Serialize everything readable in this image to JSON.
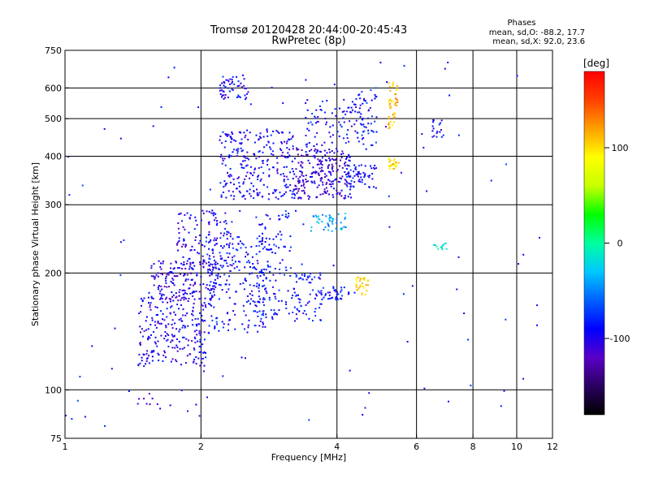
{
  "chart_data": {
    "type": "scatter",
    "title": "Tromsø 20120428 20:44:00-20:45:43",
    "subtitle": "RwPretec (8p)",
    "xlabel": "Frequency [MHz]",
    "ylabel": "Stationary phase Virtual Height [km]",
    "x_scale": "log",
    "y_scale": "log",
    "xlim": [
      1,
      12
    ],
    "ylim": [
      75,
      750
    ],
    "x_ticks": [
      1,
      2,
      4,
      6,
      8,
      10,
      12
    ],
    "x_tick_labels": [
      "1",
      "2",
      "4",
      "6",
      "8",
      "10",
      "12"
    ],
    "x_gridlines": [
      2,
      4,
      6,
      8,
      10
    ],
    "y_ticks": [
      75,
      100,
      200,
      300,
      400,
      500,
      600,
      750
    ],
    "y_tick_labels": [
      "75",
      "100",
      "200",
      "300",
      "400",
      "500",
      "600",
      "750"
    ],
    "y_gridlines": [
      100,
      200,
      300,
      400,
      500,
      600
    ],
    "grid": true,
    "phases": {
      "heading": "Phases",
      "line1": "mean, sd,O: -88.2, 17.7",
      "line2": "mean, sd,X:  92.0, 23.6"
    },
    "colorbar": {
      "label": "[deg]",
      "range": [
        -180,
        180
      ],
      "ticks": [
        100,
        0,
        -100
      ],
      "tick_labels": [
        "100",
        "0",
        "-100"
      ],
      "colormap": [
        "#000000",
        "#2a0060",
        "#5a00c8",
        "#0000ff",
        "#0060ff",
        "#00c8ff",
        "#00ffa0",
        "#00ff00",
        "#c8ff00",
        "#ffff00",
        "#ffa000",
        "#ff4000",
        "#ff0000"
      ]
    },
    "clusters": [
      {
        "fmin": 1.45,
        "fmax": 2.05,
        "hmin": 115,
        "hmax": 175,
        "phase": -100,
        "n": 240
      },
      {
        "fmin": 1.55,
        "fmax": 2.15,
        "hmin": 170,
        "hmax": 215,
        "phase": -105,
        "n": 160
      },
      {
        "fmin": 1.75,
        "fmax": 2.35,
        "hmin": 205,
        "hmax": 290,
        "phase": -100,
        "n": 130
      },
      {
        "fmin": 2.05,
        "fmax": 2.8,
        "hmin": 140,
        "hmax": 250,
        "phase": -90,
        "n": 230
      },
      {
        "fmin": 2.2,
        "fmax": 3.2,
        "hmin": 310,
        "hmax": 470,
        "phase": -95,
        "n": 260
      },
      {
        "fmin": 2.2,
        "fmax": 2.55,
        "hmin": 560,
        "hmax": 650,
        "phase": -95,
        "n": 55
      },
      {
        "fmin": 2.65,
        "fmax": 3.2,
        "hmin": 150,
        "hmax": 290,
        "phase": -85,
        "n": 120
      },
      {
        "fmin": 3.2,
        "fmax": 4.3,
        "hmin": 310,
        "hmax": 420,
        "phase": -110,
        "n": 240
      },
      {
        "fmin": 3.2,
        "fmax": 3.7,
        "hmin": 150,
        "hmax": 200,
        "phase": -90,
        "n": 70
      },
      {
        "fmin": 3.4,
        "fmax": 4.4,
        "hmin": 420,
        "hmax": 560,
        "phase": -90,
        "n": 80
      },
      {
        "fmin": 3.5,
        "fmax": 4.2,
        "hmin": 255,
        "hmax": 285,
        "phase": -40,
        "n": 45
      },
      {
        "fmin": 3.7,
        "fmax": 4.25,
        "hmin": 170,
        "hmax": 185,
        "phase": -85,
        "n": 35
      },
      {
        "fmin": 4.2,
        "fmax": 4.9,
        "hmin": 330,
        "hmax": 380,
        "phase": -90,
        "n": 60
      },
      {
        "fmin": 4.4,
        "fmax": 4.9,
        "hmin": 420,
        "hmax": 600,
        "phase": -85,
        "n": 60
      },
      {
        "fmin": 4.4,
        "fmax": 4.7,
        "hmin": 175,
        "hmax": 195,
        "phase": 100,
        "n": 30
      },
      {
        "fmin": 5.2,
        "fmax": 5.45,
        "hmin": 470,
        "hmax": 620,
        "phase": 110,
        "n": 45
      },
      {
        "fmin": 5.2,
        "fmax": 5.5,
        "hmin": 370,
        "hmax": 395,
        "phase": 100,
        "n": 25
      },
      {
        "fmin": 6.5,
        "fmax": 6.9,
        "hmin": 440,
        "hmax": 500,
        "phase": -95,
        "n": 18
      },
      {
        "fmin": 6.5,
        "fmax": 7.0,
        "hmin": 230,
        "hmax": 240,
        "phase": -20,
        "n": 12
      },
      {
        "fmin": 1.4,
        "fmax": 2.1,
        "hmin": 85,
        "hmax": 100,
        "phase": -110,
        "n": 14
      },
      {
        "fmin": 1.0,
        "fmax": 11.5,
        "hmin": 75,
        "hmax": 700,
        "phase": -90,
        "n": 90
      }
    ]
  }
}
